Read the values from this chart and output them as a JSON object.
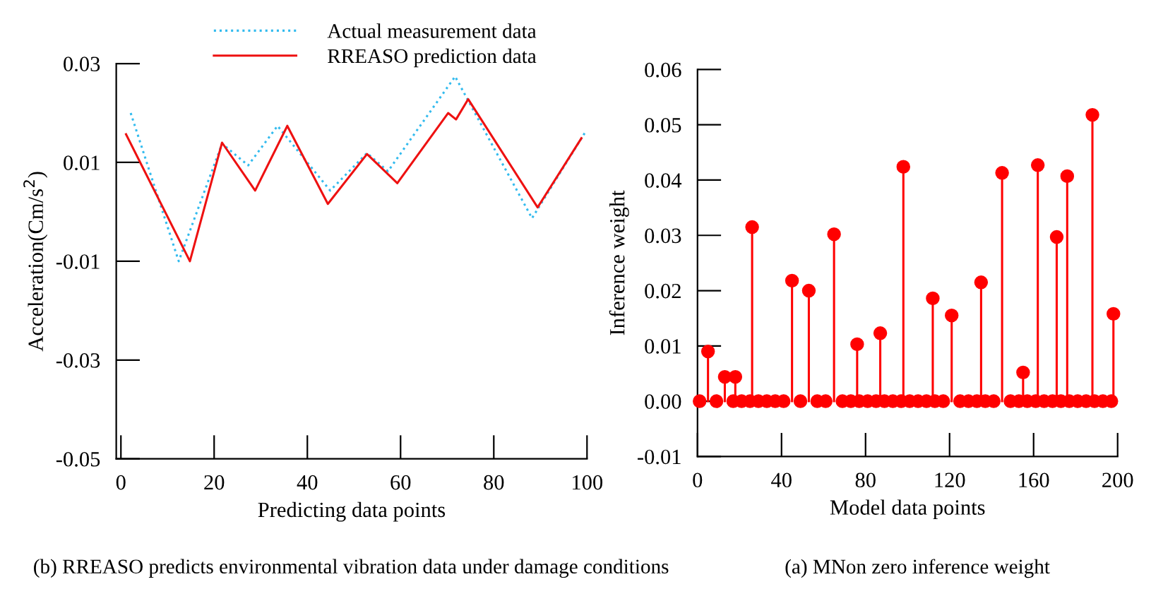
{
  "chart_data": [
    {
      "type": "line",
      "xlabel": "Predicting data points",
      "ylabel": "Acceleration(Cm/s$^{2}$)",
      "xlim": [
        -1,
        100
      ],
      "xticks": [
        0,
        20,
        40,
        60,
        80,
        100
      ],
      "ylim": [
        -0.05,
        0.03
      ],
      "yticks": [
        {
          "value": 0.03,
          "label": "0.03"
        },
        {
          "value": 0.01,
          "label": "0.01"
        },
        {
          "value": -0.01,
          "label": "-0.01"
        },
        {
          "value": -0.03,
          "label": "-0.03"
        },
        {
          "value": -0.05,
          "label": "-0.05"
        }
      ],
      "grid": false,
      "legend": "top",
      "marker": "none",
      "series": [
        {
          "name": "Actual measurement data",
          "color": "#33bbee",
          "line_style": "dotted",
          "x": [
            2.1,
            12.4,
            21.7,
            27.3,
            33.6,
            44.9,
            52.8,
            57.3,
            71.7,
            88.2,
            99.8
          ],
          "values": [
            0.02,
            -0.01,
            0.0138,
            0.0094,
            0.0174,
            0.0043,
            0.0119,
            0.0082,
            0.0274,
            -0.0013,
            0.0164
          ]
        },
        {
          "name": "RREASO prediction data",
          "color": "#ee1111",
          "line_style": "solid",
          "x": [
            1.1,
            14.8,
            21.7,
            28.8,
            35.7,
            44.4,
            52.8,
            59.3,
            70.2,
            71.9,
            74.5,
            89.4,
            98.8
          ],
          "values": [
            0.0157,
            -0.01,
            0.014,
            0.0043,
            0.0174,
            0.0016,
            0.0117,
            0.0058,
            0.02,
            0.0187,
            0.0228,
            0.0009,
            0.0149
          ]
        }
      ],
      "annotations": [
        "(b) RREASO predicts environmental vibration data under damage conditions"
      ]
    },
    {
      "type": "lollipop",
      "xlabel": "Model data points",
      "ylabel": "Inference weight",
      "xlim": [
        0,
        200
      ],
      "xticks": [
        0,
        40,
        80,
        120,
        160,
        200
      ],
      "ylim": [
        -0.01,
        0.06
      ],
      "yticks": [
        {
          "value": 0.06,
          "label": "0.06"
        },
        {
          "value": 0.05,
          "label": "0.05"
        },
        {
          "value": 0.04,
          "label": "0.04"
        },
        {
          "value": 0.03,
          "label": "0.03"
        },
        {
          "value": 0.02,
          "label": "0.02"
        },
        {
          "value": 0.01,
          "label": "0.01"
        },
        {
          "value": 0.0,
          "label": "0.00"
        },
        {
          "value": -0.01,
          "label": "-0.01"
        }
      ],
      "grid": false,
      "marker": "circle",
      "series": [
        {
          "color": "#ff0000",
          "x": [
            1,
            5,
            9,
            13,
            17,
            18,
            21,
            25,
            26,
            29,
            33,
            37,
            41,
            45,
            49,
            53,
            57,
            61,
            65,
            69,
            73,
            76,
            77,
            81,
            85,
            87,
            89,
            93,
            97,
            98,
            101,
            105,
            109,
            112,
            113,
            117,
            121,
            125,
            129,
            133,
            135,
            137,
            141,
            145,
            149,
            153,
            155,
            157,
            161,
            162,
            165,
            169,
            171,
            173,
            176,
            177,
            181,
            185,
            188,
            189,
            193,
            197,
            198
          ],
          "values": [
            0,
            0.009,
            0,
            0.0044,
            0,
            0.0044,
            0,
            0,
            0.0315,
            0,
            0,
            0,
            0,
            0.0218,
            0,
            0.02,
            0,
            0,
            0.0302,
            0,
            0,
            0.0103,
            0,
            0,
            0,
            0.0123,
            0,
            0,
            0,
            0.0424,
            0,
            0,
            0,
            0.0186,
            0,
            0,
            0.0155,
            0,
            0,
            0,
            0.0215,
            0,
            0,
            0.0413,
            0,
            0,
            0.0052,
            0,
            0,
            0.0427,
            0,
            0,
            0.0297,
            0,
            0.0407,
            0,
            0,
            0,
            0.0518,
            0,
            0,
            0,
            0.0158
          ]
        }
      ],
      "annotations": [
        "(a) MNon zero inference weight"
      ]
    }
  ]
}
